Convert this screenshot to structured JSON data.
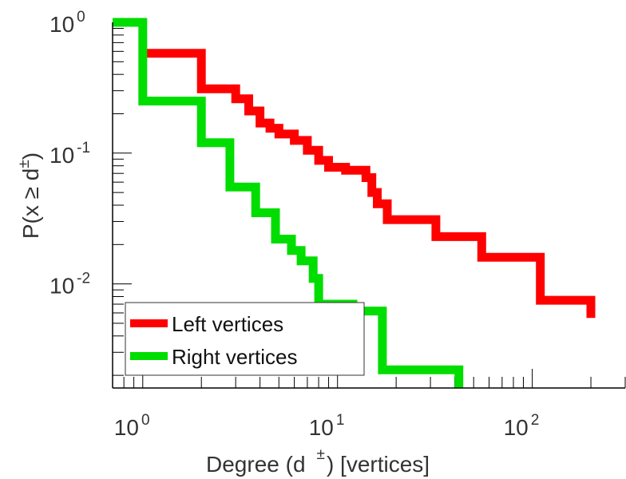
{
  "chart_data": {
    "type": "line",
    "step": true,
    "xscale": "log",
    "yscale": "log",
    "xlim": [
      0.7,
      300
    ],
    "ylim": [
      0.0016,
      1.0
    ],
    "xlabel": {
      "prefix": "Degree (d",
      "sup": "±",
      "suffix": ") [vertices]"
    },
    "ylabel": {
      "prefix": "P(x ≥ d",
      "sup": "±",
      "suffix": ")"
    },
    "xticks": [
      {
        "value": 1,
        "base": "10",
        "exp": "0"
      },
      {
        "value": 10,
        "base": "10",
        "exp": "1"
      },
      {
        "value": 100,
        "base": "10",
        "exp": "2"
      }
    ],
    "yticks": [
      {
        "value": 1,
        "base": "10",
        "exp": "0"
      },
      {
        "value": 0.1,
        "base": "10",
        "exp": "-1"
      },
      {
        "value": 0.01,
        "base": "10",
        "exp": "-2"
      }
    ],
    "legend_position": "bottom-left",
    "series": [
      {
        "name": "Left vertices",
        "color": "#ff0000",
        "points": [
          [
            1,
            0.58
          ],
          [
            2,
            0.58
          ],
          [
            2,
            0.31
          ],
          [
            3,
            0.31
          ],
          [
            3,
            0.26
          ],
          [
            3.5,
            0.26
          ],
          [
            3.5,
            0.21
          ],
          [
            4,
            0.21
          ],
          [
            4,
            0.17
          ],
          [
            4.5,
            0.17
          ],
          [
            4.5,
            0.155
          ],
          [
            5,
            0.155
          ],
          [
            5,
            0.14
          ],
          [
            6,
            0.14
          ],
          [
            6,
            0.125
          ],
          [
            7,
            0.125
          ],
          [
            7,
            0.105
          ],
          [
            8,
            0.105
          ],
          [
            8,
            0.088
          ],
          [
            9,
            0.088
          ],
          [
            9,
            0.078
          ],
          [
            11,
            0.078
          ],
          [
            11,
            0.074
          ],
          [
            14,
            0.074
          ],
          [
            14,
            0.065
          ],
          [
            15,
            0.065
          ],
          [
            15,
            0.05
          ],
          [
            16,
            0.05
          ],
          [
            16,
            0.041
          ],
          [
            18,
            0.041
          ],
          [
            18,
            0.031
          ],
          [
            32,
            0.031
          ],
          [
            32,
            0.023
          ],
          [
            55,
            0.023
          ],
          [
            55,
            0.016
          ],
          [
            110,
            0.016
          ],
          [
            110,
            0.0075
          ],
          [
            200,
            0.0075
          ],
          [
            200,
            0.0055
          ]
        ]
      },
      {
        "name": "Right vertices",
        "color": "#00dd00",
        "points": [
          [
            0.7,
            1.0
          ],
          [
            1,
            1.0
          ],
          [
            1,
            0.25
          ],
          [
            2,
            0.25
          ],
          [
            2,
            0.12
          ],
          [
            2.8,
            0.12
          ],
          [
            2.8,
            0.055
          ],
          [
            3.8,
            0.055
          ],
          [
            3.8,
            0.035
          ],
          [
            4.8,
            0.035
          ],
          [
            4.8,
            0.022
          ],
          [
            5.8,
            0.022
          ],
          [
            5.8,
            0.018
          ],
          [
            6.5,
            0.018
          ],
          [
            6.5,
            0.015
          ],
          [
            7.5,
            0.015
          ],
          [
            7.5,
            0.011
          ],
          [
            8,
            0.011
          ],
          [
            8,
            0.007
          ],
          [
            12,
            0.007
          ],
          [
            12,
            0.0062
          ],
          [
            17,
            0.0062
          ],
          [
            17,
            0.0022
          ],
          [
            42,
            0.0022
          ],
          [
            42,
            0.0016
          ]
        ]
      }
    ]
  }
}
